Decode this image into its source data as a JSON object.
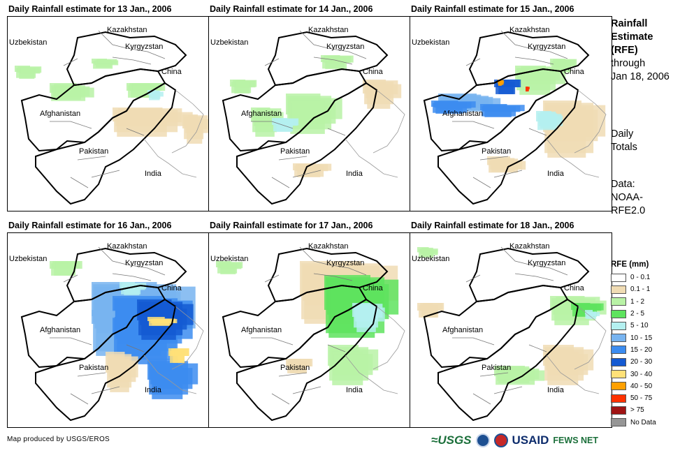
{
  "panels": [
    {
      "title": "Daily Rainfall estimate for 13 Jan., 2006",
      "pattern": "light-north"
    },
    {
      "title": "Daily Rainfall estimate for 14 Jan., 2006",
      "pattern": "green-central"
    },
    {
      "title": "Daily Rainfall estimate for 15 Jan., 2006",
      "pattern": "blue-north-heavy"
    },
    {
      "title": "Daily Rainfall estimate for 16 Jan., 2006",
      "pattern": "blue-east-heavy"
    },
    {
      "title": "Daily Rainfall estimate for 17 Jan., 2006",
      "pattern": "green-east"
    },
    {
      "title": "Daily Rainfall estimate for 18 Jan., 2006",
      "pattern": "light-east"
    }
  ],
  "map_labels": {
    "kazakhstan": "Kazakhstan",
    "uzbekistan": "Uzbekistan",
    "kyrgyzstan": "Kyrgyzstan",
    "china": "China",
    "afghanistan": "Afghanistan",
    "pakistan": "Pakistan",
    "india": "India"
  },
  "side": {
    "title_line1": "Rainfall",
    "title_line2": "Estimate",
    "title_line3": "(RFE)",
    "through_line1": "through",
    "through_line2": "Jan 18, 2006",
    "daily_line1": "Daily",
    "daily_line2": "Totals",
    "data_line1": "Data:",
    "data_line2": "NOAA-",
    "data_line3": "RFE2.0"
  },
  "legend": {
    "title": "RFE (mm)",
    "items": [
      {
        "label": "0 - 0.1",
        "color": "#ffffff"
      },
      {
        "label": "0.1 - 1",
        "color": "#f0dcb4"
      },
      {
        "label": "1 - 2",
        "color": "#b9f2a6"
      },
      {
        "label": "2 - 5",
        "color": "#5ee35e"
      },
      {
        "label": "5 - 10",
        "color": "#b4f0f0"
      },
      {
        "label": "10 - 15",
        "color": "#78b4f0"
      },
      {
        "label": "15 - 20",
        "color": "#3c8cf0"
      },
      {
        "label": "20 - 30",
        "color": "#145ad2"
      },
      {
        "label": "30 - 40",
        "color": "#ffe178"
      },
      {
        "label": "40 - 50",
        "color": "#ffa000"
      },
      {
        "label": "50 - 75",
        "color": "#ff3200"
      },
      {
        "label": "> 75",
        "color": "#a01414"
      },
      {
        "label": "No Data",
        "color": "#969696"
      }
    ]
  },
  "credit": "Map produced by USGS/EROS",
  "logos": {
    "usgs": "≈USGS",
    "usaid": "USAID",
    "fews": "FEWS NET"
  }
}
